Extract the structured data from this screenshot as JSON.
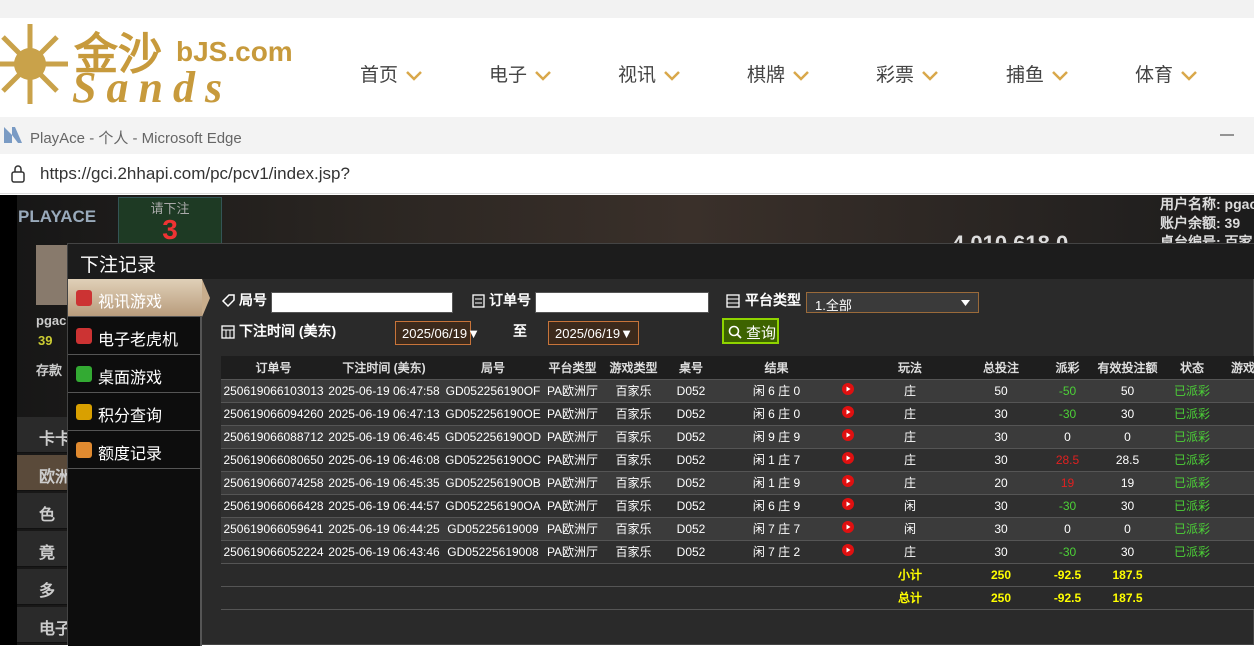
{
  "site_header": {
    "logo_cn": "金沙",
    "logo_domain": "bJS.com",
    "logo_en": "Sands",
    "nav": [
      "首页",
      "电子",
      "视讯",
      "棋牌",
      "彩票",
      "捕鱼",
      "体育"
    ]
  },
  "browser": {
    "title": "PlayAce - 个人 - Microsoft Edge",
    "url": "https://gci.2hhapi.com/pc/pcv1/index.jsp?"
  },
  "game_bg": {
    "logo": "PLAYACE",
    "bet_prompt": "请下注",
    "countdown": "3",
    "user_name": "用户名称: pgac",
    "balance": "账户余额: 39",
    "table_no": "桌台编号: 百家",
    "pool": "4,010,618.0",
    "side_user": "pgac",
    "side_balance": "39",
    "deposit": "存款",
    "side_items": [
      "卡卡",
      "欧洲",
      "色",
      "竟",
      "多",
      "电子"
    ]
  },
  "modal": {
    "title": "下注记录",
    "sidebar": [
      "视讯游戏",
      "电子老虎机",
      "桌面游戏",
      "积分查询",
      "额度记录"
    ],
    "filters": {
      "round_label": "局号",
      "order_label": "订单号",
      "platform_label": "平台类型",
      "platform_value": "1.全部",
      "time_label": "下注时间 (美东)",
      "date_from": "2025/06/19▼",
      "to": "至",
      "date_to": "2025/06/19▼",
      "query": "查询"
    },
    "table": {
      "headers": [
        "订单号",
        "下注时间 (美东)",
        "局号",
        "平台类型",
        "游戏类型",
        "桌号",
        "结果",
        "玩法",
        "总投注",
        "派彩",
        "有效投注额",
        "状态",
        "游戏"
      ],
      "rows": [
        [
          "250619066103013",
          "2025-06-19 06:47:58",
          "GD052256190OF",
          "PA欧洲厅",
          "百家乐",
          "D052",
          "闲 6 庄 0",
          "庄",
          "50",
          "-50",
          "50",
          "已派彩"
        ],
        [
          "250619066094260",
          "2025-06-19 06:47:13",
          "GD052256190OE",
          "PA欧洲厅",
          "百家乐",
          "D052",
          "闲 6 庄 0",
          "庄",
          "30",
          "-30",
          "30",
          "已派彩"
        ],
        [
          "250619066088712",
          "2025-06-19 06:46:45",
          "GD052256190OD",
          "PA欧洲厅",
          "百家乐",
          "D052",
          "闲 9 庄 9",
          "庄",
          "30",
          "0",
          "0",
          "已派彩"
        ],
        [
          "250619066080650",
          "2025-06-19 06:46:08",
          "GD052256190OC",
          "PA欧洲厅",
          "百家乐",
          "D052",
          "闲 1 庄 7",
          "庄",
          "30",
          "28.5",
          "28.5",
          "已派彩"
        ],
        [
          "250619066074258",
          "2025-06-19 06:45:35",
          "GD052256190OB",
          "PA欧洲厅",
          "百家乐",
          "D052",
          "闲 1 庄 9",
          "庄",
          "20",
          "19",
          "19",
          "已派彩"
        ],
        [
          "250619066066428",
          "2025-06-19 06:44:57",
          "GD052256190OA",
          "PA欧洲厅",
          "百家乐",
          "D052",
          "闲 6 庄 9",
          "闲",
          "30",
          "-30",
          "30",
          "已派彩"
        ],
        [
          "250619066059641",
          "2025-06-19 06:44:25",
          "GD05225619009",
          "PA欧洲厅",
          "百家乐",
          "D052",
          "闲 7 庄 7",
          "闲",
          "30",
          "0",
          "0",
          "已派彩"
        ],
        [
          "250619066052224",
          "2025-06-19 06:43:46",
          "GD05225619008",
          "PA欧洲厅",
          "百家乐",
          "D052",
          "闲 7 庄 2",
          "庄",
          "30",
          "-30",
          "30",
          "已派彩"
        ]
      ],
      "subtotal": [
        "小计",
        "250",
        "-92.5",
        "187.5"
      ],
      "total": [
        "总计",
        "250",
        "-92.5",
        "187.5"
      ]
    }
  }
}
